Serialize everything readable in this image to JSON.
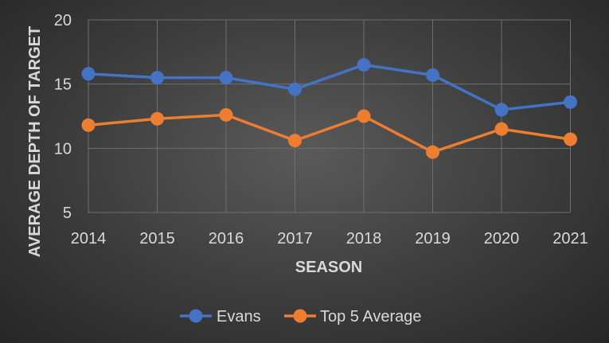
{
  "chart_data": {
    "type": "line",
    "x": [
      "2014",
      "2015",
      "2016",
      "2017",
      "2018",
      "2019",
      "2020",
      "2021"
    ],
    "series": [
      {
        "name": "Evans",
        "color": "#4472c4",
        "values": [
          15.8,
          15.5,
          15.5,
          14.6,
          16.5,
          15.7,
          13.0,
          13.6
        ]
      },
      {
        "name": "Top 5 Average",
        "color": "#ed7d31",
        "values": [
          11.8,
          12.3,
          12.6,
          10.6,
          12.5,
          9.7,
          11.5,
          10.7
        ]
      }
    ],
    "xlabel": "SEASON",
    "ylabel": "AVERAGE DEPTH OF TARGET",
    "ylim": [
      5,
      20
    ],
    "yticks": [
      "5",
      "10",
      "15",
      "20"
    ],
    "grid": true,
    "legend_position": "bottom"
  }
}
